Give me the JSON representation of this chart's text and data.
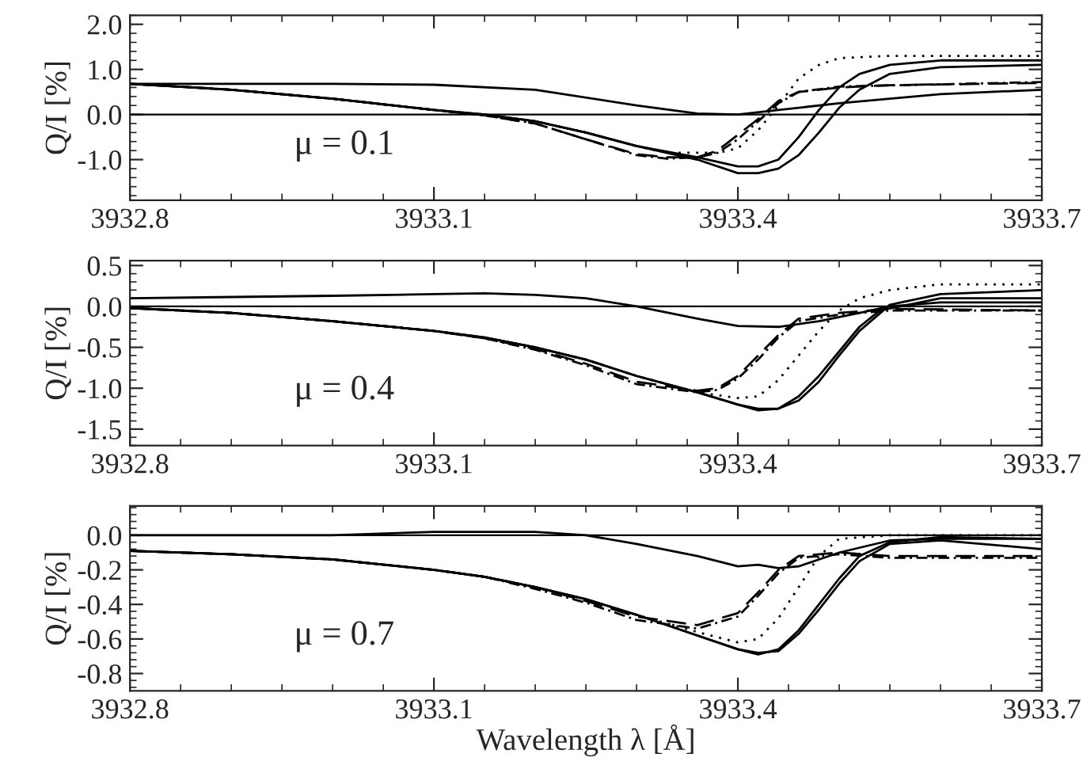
{
  "chart_data": [
    {
      "type": "line",
      "ylabel": "Q/I [%]",
      "annotations": [
        "μ = 0.1"
      ],
      "xlim": [
        3932.8,
        3933.7
      ],
      "xticks": [
        3932.8,
        3933.1,
        3933.4,
        3933.7
      ],
      "ylim": [
        -1.9,
        2.2
      ],
      "yticks": [
        {
          "value": -1,
          "label": "-1.0"
        },
        {
          "value": 0,
          "label": "0.0"
        },
        {
          "value": 1,
          "label": "1.0"
        },
        {
          "value": 2,
          "label": "2.0"
        }
      ],
      "ref_lines": [
        {
          "axis": "y",
          "value": 0,
          "color": "#000000"
        }
      ],
      "legend": false,
      "grid": false,
      "series": [
        {
          "color": "#000000",
          "line_style": "solid",
          "x": [
            3932.8,
            3933.0,
            3933.1,
            3933.2,
            3933.3,
            3933.36,
            3933.4,
            3933.44,
            3933.5,
            3933.6,
            3933.7
          ],
          "values": [
            0.68,
            0.68,
            0.66,
            0.55,
            0.2,
            0.02,
            0.0,
            0.1,
            0.25,
            0.45,
            0.55
          ]
        },
        {
          "color": "#000000",
          "line_style": "solid",
          "x": [
            3932.8,
            3932.9,
            3933.0,
            3933.1,
            3933.15,
            3933.2,
            3933.25,
            3933.3,
            3933.36,
            3933.4,
            3933.42,
            3933.44,
            3933.46,
            3933.48,
            3933.5,
            3933.52,
            3933.55,
            3933.6,
            3933.7
          ],
          "values": [
            0.68,
            0.55,
            0.35,
            0.1,
            0.0,
            -0.15,
            -0.4,
            -0.7,
            -0.95,
            -1.15,
            -1.15,
            -1.0,
            -0.5,
            0.1,
            0.6,
            0.9,
            1.1,
            1.2,
            1.2
          ]
        },
        {
          "color": "#000000",
          "line_style": "solid",
          "x": [
            3932.8,
            3932.9,
            3933.0,
            3933.1,
            3933.15,
            3933.2,
            3933.25,
            3933.3,
            3933.36,
            3933.4,
            3933.42,
            3933.44,
            3933.46,
            3933.48,
            3933.5,
            3933.52,
            3933.55,
            3933.6,
            3933.7
          ],
          "values": [
            0.68,
            0.55,
            0.35,
            0.1,
            0.0,
            -0.15,
            -0.4,
            -0.7,
            -1.0,
            -1.3,
            -1.3,
            -1.2,
            -0.9,
            -0.4,
            0.15,
            0.55,
            0.9,
            1.05,
            1.1
          ]
        },
        {
          "color": "#000000",
          "line_style": "dotted",
          "x": [
            3932.8,
            3932.9,
            3933.0,
            3933.1,
            3933.15,
            3933.2,
            3933.25,
            3933.3,
            3933.33,
            3933.36,
            3933.38,
            3933.4,
            3933.42,
            3933.44,
            3933.46,
            3933.48,
            3933.5,
            3933.55,
            3933.7
          ],
          "values": [
            0.68,
            0.55,
            0.35,
            0.1,
            0.0,
            -0.15,
            -0.4,
            -0.7,
            -0.85,
            -0.85,
            -0.85,
            -0.75,
            -0.35,
            0.2,
            0.8,
            1.1,
            1.25,
            1.3,
            1.3
          ]
        },
        {
          "color": "#000000",
          "line_style": "dashed",
          "x": [
            3932.8,
            3932.9,
            3933.0,
            3933.1,
            3933.15,
            3933.2,
            3933.25,
            3933.3,
            3933.33,
            3933.36,
            3933.38,
            3933.4,
            3933.42,
            3933.44,
            3933.46,
            3933.5,
            3933.55,
            3933.7
          ],
          "values": [
            0.68,
            0.55,
            0.35,
            0.1,
            -0.02,
            -0.2,
            -0.55,
            -0.88,
            -0.95,
            -0.95,
            -0.8,
            -0.45,
            -0.1,
            0.3,
            0.5,
            0.6,
            0.65,
            0.7
          ]
        },
        {
          "color": "#000000",
          "line_style": "dashdot",
          "x": [
            3932.85,
            3932.9,
            3933.0,
            3933.1,
            3933.15,
            3933.2,
            3933.25,
            3933.3,
            3933.33,
            3933.36,
            3933.38,
            3933.4,
            3933.42,
            3933.44,
            3933.46,
            3933.5,
            3933.7
          ],
          "values": [
            0.62,
            0.55,
            0.35,
            0.1,
            -0.02,
            -0.2,
            -0.55,
            -0.9,
            -0.98,
            -0.95,
            -0.85,
            -0.55,
            -0.15,
            0.25,
            0.5,
            0.62,
            0.72
          ]
        }
      ]
    },
    {
      "type": "line",
      "ylabel": "Q/I [%]",
      "annotations": [
        "μ = 0.4"
      ],
      "xlim": [
        3932.8,
        3933.7
      ],
      "xticks": [
        3932.8,
        3933.1,
        3933.4,
        3933.7
      ],
      "ylim": [
        -1.7,
        0.56
      ],
      "yticks": [
        {
          "value": -1.5,
          "label": "-1.5"
        },
        {
          "value": -1,
          "label": "-1.0"
        },
        {
          "value": -0.5,
          "label": "-0.5"
        },
        {
          "value": 0,
          "label": "0.0"
        },
        {
          "value": 0.5,
          "label": "0.5"
        }
      ],
      "ref_lines": [
        {
          "axis": "y",
          "value": 0,
          "color": "#000000"
        }
      ],
      "legend": false,
      "grid": false,
      "series": [
        {
          "color": "#000000",
          "line_style": "solid",
          "x": [
            3932.8,
            3933.0,
            3933.1,
            3933.15,
            3933.2,
            3933.25,
            3933.3,
            3933.36,
            3933.4,
            3933.44,
            3933.48,
            3933.52,
            3933.55,
            3933.6,
            3933.7
          ],
          "values": [
            0.1,
            0.13,
            0.15,
            0.16,
            0.14,
            0.1,
            0.0,
            -0.15,
            -0.24,
            -0.25,
            -0.18,
            -0.08,
            0.0,
            0.05,
            0.05
          ]
        },
        {
          "color": "#000000",
          "line_style": "solid",
          "x": [
            3932.8,
            3932.9,
            3933.0,
            3933.1,
            3933.15,
            3933.2,
            3933.25,
            3933.3,
            3933.36,
            3933.4,
            3933.42,
            3933.44,
            3933.46,
            3933.48,
            3933.5,
            3933.52,
            3933.54,
            3933.6,
            3933.7
          ],
          "values": [
            -0.02,
            -0.08,
            -0.18,
            -0.3,
            -0.38,
            -0.5,
            -0.65,
            -0.85,
            -1.05,
            -1.2,
            -1.27,
            -1.25,
            -1.1,
            -0.85,
            -0.55,
            -0.25,
            -0.05,
            0.1,
            0.1
          ]
        },
        {
          "color": "#000000",
          "line_style": "solid",
          "x": [
            3932.8,
            3932.9,
            3933.0,
            3933.1,
            3933.15,
            3933.2,
            3933.25,
            3933.3,
            3933.36,
            3933.4,
            3933.42,
            3933.44,
            3933.46,
            3933.48,
            3933.5,
            3933.52,
            3933.55,
            3933.6,
            3933.7
          ],
          "values": [
            -0.02,
            -0.08,
            -0.18,
            -0.3,
            -0.38,
            -0.5,
            -0.65,
            -0.85,
            -1.05,
            -1.2,
            -1.25,
            -1.25,
            -1.15,
            -0.92,
            -0.6,
            -0.3,
            0.02,
            0.15,
            0.2
          ]
        },
        {
          "color": "#000000",
          "line_style": "dotted",
          "x": [
            3932.8,
            3932.9,
            3933.0,
            3933.1,
            3933.15,
            3933.2,
            3933.25,
            3933.3,
            3933.36,
            3933.4,
            3933.42,
            3933.44,
            3933.46,
            3933.48,
            3933.5,
            3933.52,
            3933.55,
            3933.6,
            3933.7
          ],
          "values": [
            -0.02,
            -0.08,
            -0.18,
            -0.3,
            -0.38,
            -0.5,
            -0.65,
            -0.85,
            -1.05,
            -1.12,
            -1.1,
            -0.9,
            -0.6,
            -0.3,
            -0.05,
            0.1,
            0.2,
            0.27,
            0.27
          ]
        },
        {
          "color": "#000000",
          "line_style": "dashed",
          "x": [
            3932.8,
            3932.9,
            3933.0,
            3933.1,
            3933.15,
            3933.2,
            3933.25,
            3933.3,
            3933.36,
            3933.38,
            3933.4,
            3933.42,
            3933.44,
            3933.46,
            3933.5,
            3933.55,
            3933.7
          ],
          "values": [
            -0.02,
            -0.08,
            -0.18,
            -0.3,
            -0.39,
            -0.52,
            -0.7,
            -0.92,
            -1.03,
            -1.0,
            -0.85,
            -0.6,
            -0.35,
            -0.15,
            -0.08,
            -0.03,
            -0.05
          ]
        },
        {
          "color": "#000000",
          "line_style": "dashdot",
          "x": [
            3932.85,
            3932.9,
            3933.0,
            3933.1,
            3933.15,
            3933.2,
            3933.25,
            3933.3,
            3933.36,
            3933.38,
            3933.4,
            3933.42,
            3933.44,
            3933.46,
            3933.5,
            3933.55,
            3933.7
          ],
          "values": [
            -0.05,
            -0.08,
            -0.18,
            -0.3,
            -0.39,
            -0.53,
            -0.72,
            -0.95,
            -1.05,
            -1.02,
            -0.88,
            -0.65,
            -0.38,
            -0.18,
            -0.1,
            -0.05,
            -0.05
          ]
        }
      ]
    },
    {
      "type": "line",
      "xlabel": "Wavelength λ [Å]",
      "ylabel": "Q/I [%]",
      "annotations": [
        "μ = 0.7"
      ],
      "xlim": [
        3932.8,
        3933.7
      ],
      "xticks": [
        3932.8,
        3933.1,
        3933.4,
        3933.7
      ],
      "ylim": [
        -0.9,
        0.17
      ],
      "yticks": [
        {
          "value": -0.8,
          "label": "-0.8"
        },
        {
          "value": -0.6,
          "label": "-0.6"
        },
        {
          "value": -0.4,
          "label": "-0.4"
        },
        {
          "value": -0.2,
          "label": "-0.2"
        },
        {
          "value": 0,
          "label": "0.0"
        }
      ],
      "ref_lines": [
        {
          "axis": "y",
          "value": 0,
          "color": "#000000"
        }
      ],
      "legend": false,
      "grid": false,
      "series": [
        {
          "color": "#000000",
          "line_style": "solid",
          "x": [
            3932.8,
            3933.0,
            3933.1,
            3933.2,
            3933.25,
            3933.3,
            3933.36,
            3933.4,
            3933.42,
            3933.44,
            3933.46,
            3933.48,
            3933.5,
            3933.55,
            3933.6,
            3933.7
          ],
          "values": [
            0.0,
            0.0,
            0.02,
            0.02,
            0.0,
            -0.05,
            -0.12,
            -0.18,
            -0.17,
            -0.19,
            -0.18,
            -0.14,
            -0.1,
            -0.03,
            -0.02,
            -0.02
          ]
        },
        {
          "color": "#000000",
          "line_style": "solid",
          "x": [
            3932.8,
            3932.9,
            3933.0,
            3933.1,
            3933.15,
            3933.2,
            3933.25,
            3933.3,
            3933.36,
            3933.4,
            3933.42,
            3933.44,
            3933.46,
            3933.48,
            3933.5,
            3933.52,
            3933.55,
            3933.6,
            3933.7
          ],
          "values": [
            -0.09,
            -0.11,
            -0.14,
            -0.2,
            -0.24,
            -0.3,
            -0.37,
            -0.46,
            -0.58,
            -0.66,
            -0.69,
            -0.66,
            -0.55,
            -0.4,
            -0.25,
            -0.12,
            -0.04,
            -0.01,
            -0.02
          ]
        },
        {
          "color": "#000000",
          "line_style": "solid",
          "x": [
            3932.8,
            3932.9,
            3933.0,
            3933.1,
            3933.15,
            3933.2,
            3933.25,
            3933.3,
            3933.36,
            3933.4,
            3933.42,
            3933.44,
            3933.46,
            3933.48,
            3933.5,
            3933.52,
            3933.55,
            3933.6,
            3933.7
          ],
          "values": [
            -0.09,
            -0.11,
            -0.14,
            -0.2,
            -0.24,
            -0.3,
            -0.37,
            -0.46,
            -0.58,
            -0.66,
            -0.68,
            -0.67,
            -0.57,
            -0.43,
            -0.28,
            -0.15,
            -0.05,
            -0.03,
            -0.08
          ]
        },
        {
          "color": "#000000",
          "line_style": "dotted",
          "x": [
            3932.8,
            3932.9,
            3933.0,
            3933.1,
            3933.15,
            3933.2,
            3933.25,
            3933.3,
            3933.36,
            3933.4,
            3933.42,
            3933.44,
            3933.46,
            3933.48,
            3933.5,
            3933.55,
            3933.7
          ],
          "values": [
            -0.09,
            -0.11,
            -0.14,
            -0.2,
            -0.24,
            -0.3,
            -0.37,
            -0.46,
            -0.56,
            -0.62,
            -0.6,
            -0.48,
            -0.3,
            -0.12,
            -0.02,
            0.0,
            0.0
          ]
        },
        {
          "color": "#000000",
          "line_style": "dashed",
          "x": [
            3932.8,
            3932.9,
            3933.0,
            3933.1,
            3933.15,
            3933.2,
            3933.25,
            3933.3,
            3933.36,
            3933.4,
            3933.42,
            3933.44,
            3933.46,
            3933.5,
            3933.55,
            3933.7
          ],
          "values": [
            -0.09,
            -0.11,
            -0.14,
            -0.2,
            -0.24,
            -0.3,
            -0.38,
            -0.47,
            -0.52,
            -0.45,
            -0.33,
            -0.2,
            -0.12,
            -0.1,
            -0.12,
            -0.12
          ]
        },
        {
          "color": "#000000",
          "line_style": "dashdot",
          "x": [
            3932.85,
            3932.9,
            3933.0,
            3933.1,
            3933.15,
            3933.2,
            3933.25,
            3933.3,
            3933.36,
            3933.4,
            3933.42,
            3933.44,
            3933.46,
            3933.5,
            3933.55,
            3933.7
          ],
          "values": [
            -0.1,
            -0.11,
            -0.14,
            -0.2,
            -0.24,
            -0.31,
            -0.39,
            -0.49,
            -0.54,
            -0.47,
            -0.35,
            -0.22,
            -0.13,
            -0.11,
            -0.13,
            -0.13
          ]
        }
      ]
    }
  ]
}
